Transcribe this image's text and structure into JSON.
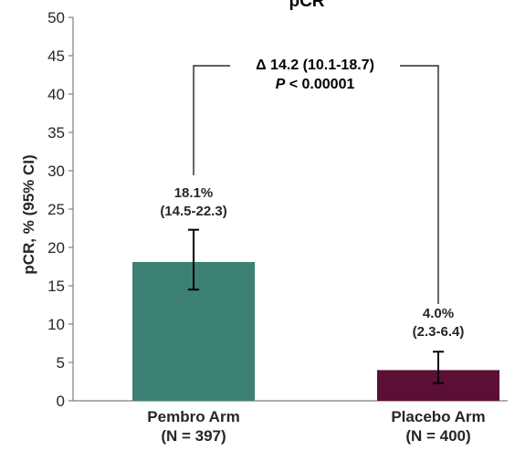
{
  "chart_data": {
    "type": "bar",
    "title": "pCR",
    "ylabel": "pCR, % (95% CI)",
    "xlabel": "",
    "ylim": [
      0,
      50
    ],
    "yticks": [
      0,
      5,
      10,
      15,
      20,
      25,
      30,
      35,
      40,
      45,
      50
    ],
    "grid": false,
    "categories": [
      {
        "line1": "Pembro Arm",
        "line2": "(N = 397)"
      },
      {
        "line1": "Placebo Arm",
        "line2": "(N = 400)"
      }
    ],
    "values": [
      18.1,
      4.0
    ],
    "ci_low": [
      14.5,
      2.3
    ],
    "ci_high": [
      22.3,
      6.4
    ],
    "colors": [
      "#3d8074",
      "#5c0f34"
    ],
    "data_labels": [
      {
        "line1": "18.1%",
        "line2": "(14.5-22.3)"
      },
      {
        "line1": "4.0%",
        "line2": "(2.3-6.4)"
      }
    ],
    "comparison": {
      "delta_text": "Δ 14.2 (10.1-18.7)",
      "p_prefix": "P",
      "p_value": " < 0.00001"
    }
  }
}
